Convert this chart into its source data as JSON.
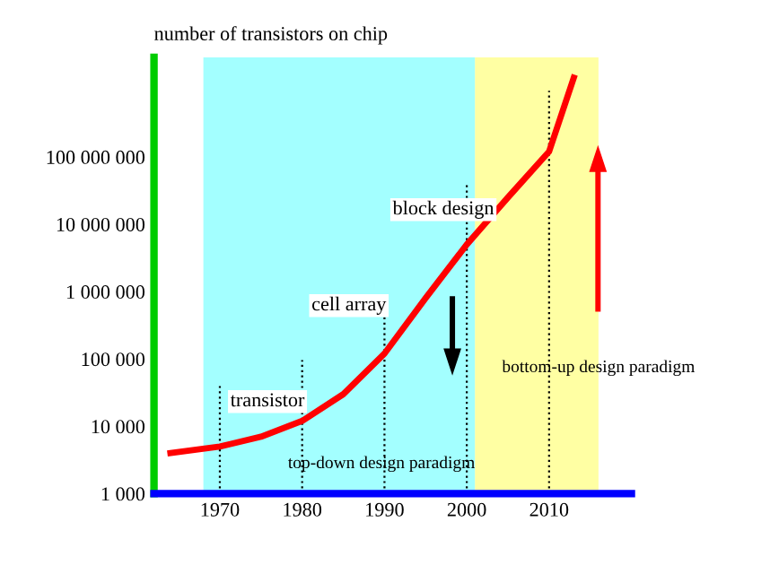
{
  "chart_data": {
    "type": "line",
    "ylabel": "number of transistors on chip",
    "x": [
      1964,
      1970,
      1975,
      1980,
      1985,
      1990,
      1995,
      2000,
      2005,
      2010,
      2013
    ],
    "series": [
      {
        "color": "#ff0000",
        "values": [
          4000,
          5000,
          7000,
          12000,
          30000,
          120000,
          800000,
          5000000,
          25000000,
          120000000,
          1500000000
        ]
      }
    ],
    "xlim": [
      1962,
      2020
    ],
    "xticks": [
      1970,
      1980,
      1990,
      2000,
      2010
    ],
    "log": "y",
    "ylim": [
      1000,
      3000000000
    ],
    "yticks": [
      {
        "value": 1000,
        "label": "1 000"
      },
      {
        "value": 10000,
        "label": "10 000"
      },
      {
        "value": 100000,
        "label": "100 000"
      },
      {
        "value": 1000000,
        "label": "1 000 000"
      },
      {
        "value": 10000000,
        "label": "10 000 000"
      },
      {
        "value": 100000000,
        "label": "100 000 000"
      }
    ],
    "bands": [
      {
        "axis": "x",
        "from": 1968,
        "to": 2001,
        "label": "top-down design paradigm",
        "color": "#66ffff"
      },
      {
        "axis": "x",
        "from": 2001,
        "to": 2016,
        "label": "bottom-up design paradigm",
        "color": "#ffff66"
      }
    ],
    "ref_lines": [
      {
        "axis": "x",
        "value": 1970,
        "line_style": "dotted"
      },
      {
        "axis": "x",
        "value": 1980,
        "line_style": "dotted"
      },
      {
        "axis": "x",
        "value": 1990,
        "line_style": "dotted"
      },
      {
        "axis": "x",
        "value": 2000,
        "line_style": "dotted"
      },
      {
        "axis": "x",
        "value": 2010,
        "line_style": "dotted"
      }
    ],
    "annotations": [
      "transistor",
      "cell array",
      "block design"
    ],
    "grid": false
  }
}
